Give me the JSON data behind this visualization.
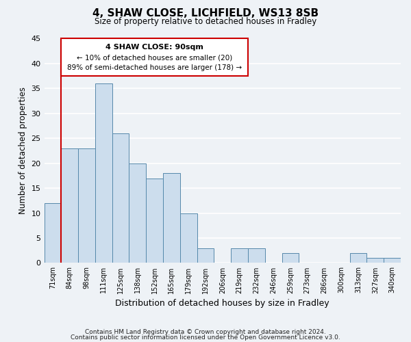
{
  "title": "4, SHAW CLOSE, LICHFIELD, WS13 8SB",
  "subtitle": "Size of property relative to detached houses in Fradley",
  "xlabel": "Distribution of detached houses by size in Fradley",
  "ylabel": "Number of detached properties",
  "bar_labels": [
    "71sqm",
    "84sqm",
    "98sqm",
    "111sqm",
    "125sqm",
    "138sqm",
    "152sqm",
    "165sqm",
    "179sqm",
    "192sqm",
    "206sqm",
    "219sqm",
    "232sqm",
    "246sqm",
    "259sqm",
    "273sqm",
    "286sqm",
    "300sqm",
    "313sqm",
    "327sqm",
    "340sqm"
  ],
  "bar_values": [
    12,
    23,
    23,
    36,
    26,
    20,
    17,
    18,
    10,
    3,
    0,
    3,
    3,
    0,
    2,
    0,
    0,
    0,
    2,
    1,
    1
  ],
  "bar_color": "#ccdded",
  "bar_edge_color": "#5588aa",
  "ylim": [
    0,
    45
  ],
  "yticks": [
    0,
    5,
    10,
    15,
    20,
    25,
    30,
    35,
    40,
    45
  ],
  "annotation_title": "4 SHAW CLOSE: 90sqm",
  "annotation_line1": "← 10% of detached houses are smaller (20)",
  "annotation_line2": "89% of semi-detached houses are larger (178) →",
  "annotation_box_color": "#ffffff",
  "annotation_box_edge_color": "#cc0000",
  "property_line_color": "#cc0000",
  "footnote1": "Contains HM Land Registry data © Crown copyright and database right 2024.",
  "footnote2": "Contains public sector information licensed under the Open Government Licence v3.0.",
  "background_color": "#eef2f6",
  "grid_color": "#ffffff"
}
